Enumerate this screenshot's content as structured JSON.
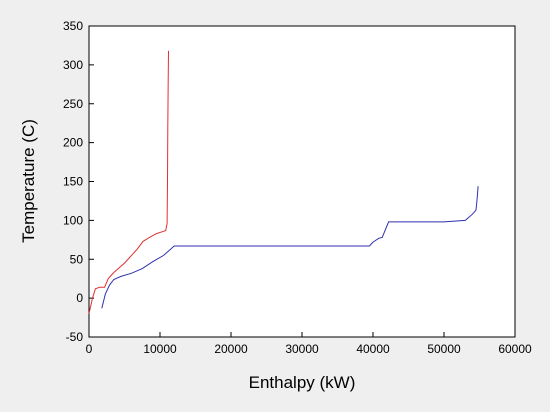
{
  "chart_data": {
    "type": "line",
    "title": "",
    "xlabel": "Enthalpy (kW)",
    "ylabel": "Temperature (C)",
    "xlim": [
      0,
      60000
    ],
    "ylim": [
      -50,
      350
    ],
    "xticks": [
      0,
      10000,
      20000,
      30000,
      40000,
      50000,
      60000
    ],
    "xtick_labels": [
      "0",
      "10000",
      "20000",
      "30000",
      "40000",
      "50000",
      "60000"
    ],
    "yticks": [
      -50,
      0,
      50,
      100,
      150,
      200,
      250,
      300,
      350
    ],
    "ytick_labels": [
      "-50",
      "0",
      "50",
      "100",
      "150",
      "200",
      "250",
      "300",
      "350"
    ],
    "grid": false,
    "legend": "none",
    "background": "#efefef",
    "plot_background": "#ffffff",
    "series": [
      {
        "color": "#e03030",
        "x": [
          0,
          500,
          900,
          1500,
          2200,
          2700,
          3500,
          5000,
          6800,
          7600,
          8500,
          9500,
          10500,
          10800,
          11000,
          11050,
          11100,
          11150,
          11200
        ],
        "y": [
          -20,
          0,
          12,
          14,
          14,
          25,
          33,
          45,
          63,
          73,
          78,
          83,
          86,
          87,
          96,
          150,
          220,
          280,
          318
        ]
      },
      {
        "color": "#3030b0",
        "x": [
          1800,
          2300,
          2900,
          3500,
          4500,
          6000,
          7500,
          9000,
          10500,
          12000,
          20000,
          30000,
          39500,
          40000,
          40800,
          41300,
          42200,
          45000,
          50000,
          53000,
          54000,
          54500,
          54600,
          54700,
          54800
        ],
        "y": [
          -13,
          5,
          17,
          24,
          28,
          32,
          38,
          47,
          55,
          67,
          67,
          67,
          67,
          72,
          77,
          78,
          98,
          98,
          98,
          100,
          108,
          113,
          122,
          132,
          144
        ]
      }
    ]
  }
}
